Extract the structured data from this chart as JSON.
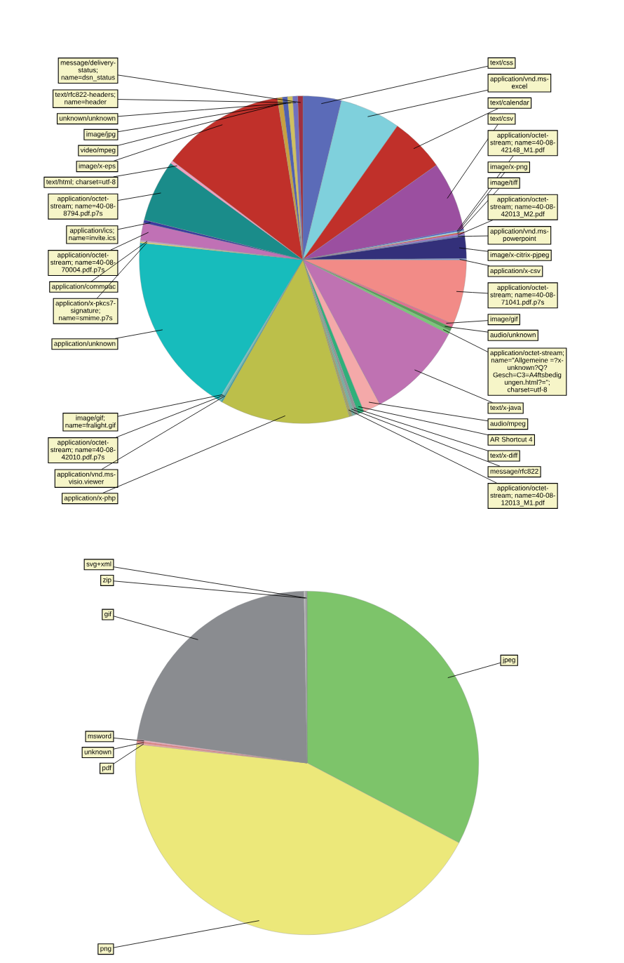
{
  "chart_data": [
    {
      "type": "pie",
      "categories": [
        "text/css",
        "application/vnd.ms-\nexcel",
        "text/calendar",
        "text/csv",
        "application/octet-\nstream; name=40-08-\n42148_M1.pdf",
        "image/x-png",
        "image/tiff",
        "application/octet-\nstream; name=40-08-\n42013_M2.pdf",
        "application/vnd.ms-\npowerpoint",
        "image/x-citrix-pjpeg",
        "application/x-csv",
        "application/octet-\nstream; name=40-08-\n71041.pdf.p7s",
        "image/gif",
        "audio/unknown",
        "application/octet-stream;\nname=\"Allgemeine =?x-\nunknown?Q?\nGesch=C3=A4ftsbedig\nungen.html?=\";\ncharset=utf-8",
        "text/x-java",
        "audio/mpeg",
        "AR Shortcut 4",
        "text/x-diff",
        "message/rfc822",
        "application/octet-\nstream; name=40-08-\n12013_M1.pdf",
        "application/x-php",
        "application/vnd.ms-\nvisio.viewer",
        "application/octet-\nstream; name=40-08-\n42010.pdf.p7s",
        "image/gif;\nname=fralight.gif",
        "application/unknown",
        "application/x-pkcs7-\nsignature;\nname=smime.p7s",
        "application/commoac",
        "application/octet-\nstream; name=40-08-\n70004.pdf.p7s",
        "application/ics;\nname=invite.ics",
        "application/octet-\nstream; name=40-08-\n8794.pdf.p7s",
        "text/html; charset=utf-8",
        "image/x-eps",
        "video/mpeg",
        "image/jpg",
        "unknown/unknown",
        "text/rfc822-headers;\nname=header",
        "message/delivery-\nstatus;\nname=dsn_status"
      ],
      "values": [
        3.8,
        6.0,
        5.4,
        6.8,
        0.14,
        0.14,
        0.14,
        0.14,
        0.14,
        2.2,
        0.14,
        6.4,
        0.36,
        0.36,
        0.36,
        9.7,
        1.7,
        0.6,
        0.3,
        0.3,
        0.3,
        12.8,
        0.14,
        0.14,
        0.14,
        18.0,
        0.14,
        0.14,
        1.7,
        0.3,
        6.1,
        0.3,
        12.18,
        0.5,
        0.5,
        0.5,
        0.5,
        0.5
      ],
      "colors": [
        "#5b6bb8",
        "#7fd0dc",
        "#c0302a",
        "#9b4fa0",
        "#4a5bd0",
        "#9fe0e8",
        "#e05a4a",
        "#b06ad0",
        "#6a78c8",
        "#33307a",
        "#7a9ad8",
        "#f28b87",
        "#e07090",
        "#5a9e5a",
        "#7ac878",
        "#bf72b2",
        "#f4a9a9",
        "#2fb07a",
        "#909498",
        "#7ab0a0",
        "#a0a070",
        "#bcbf4a",
        "#3aa0a0",
        "#60c0c0",
        "#80d0d0",
        "#17bcbc",
        "#e0e070",
        "#d0a0d0",
        "#c071b5",
        "#3a3aa0",
        "#1a8c8a",
        "#f0a0c0",
        "#c0302a",
        "#c8a040",
        "#5060b0",
        "#d0c060",
        "#7070c0",
        "#a03040"
      ]
    },
    {
      "type": "pie",
      "categories": [
        "jpeg",
        "png",
        "pdf",
        "unknown",
        "msword",
        "gif",
        "zip",
        "svg+xml"
      ],
      "values": [
        32.7,
        44.05,
        0.15,
        0.15,
        0.15,
        22.5,
        0.15,
        0.15
      ],
      "colors": [
        "#7dc46a",
        "#ece87a",
        "#f4a9a9",
        "#f08080",
        "#f4b0c0",
        "#8a8c90",
        "#c0c0c0",
        "#a0a0a0"
      ]
    }
  ]
}
